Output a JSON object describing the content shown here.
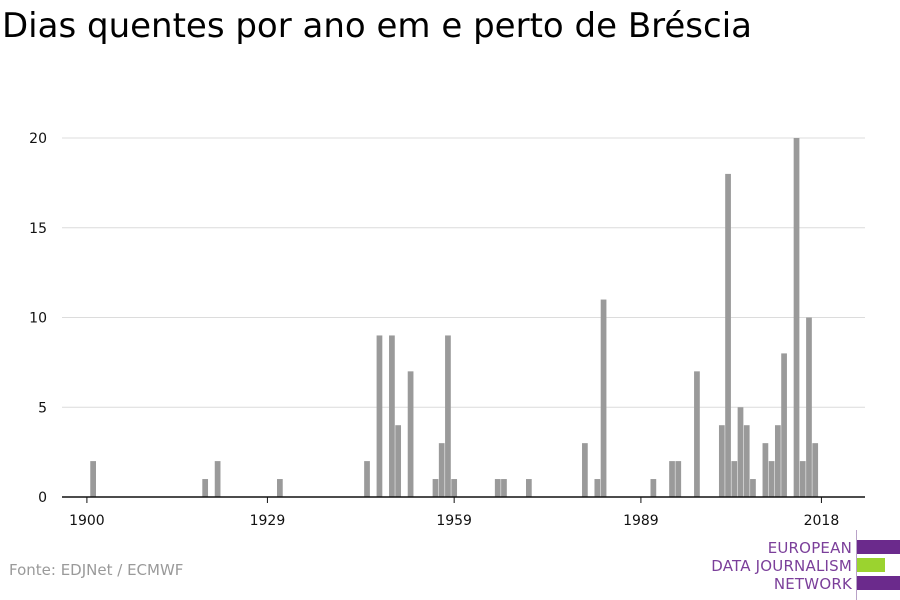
{
  "title": "Dias quentes por ano em e perto de Bréscia",
  "source": "Fonte: EDJNet / ECMWF",
  "logo": {
    "lines": [
      "EUROPEAN",
      "DATA JOURNALISM",
      "NETWORK"
    ],
    "colors": {
      "purple": "#6b2a8c",
      "green": "#9bd32f"
    }
  },
  "chart_data": {
    "type": "bar",
    "title": "Dias quentes por ano em e perto de Bréscia",
    "xlabel": "",
    "ylabel": "",
    "xlim": [
      1896,
      2025
    ],
    "ylim": [
      0,
      20
    ],
    "yticks": [
      0,
      5,
      10,
      15,
      20
    ],
    "xticks": [
      1900,
      1929,
      1959,
      1989,
      2018
    ],
    "bar_color": "#9a9a9a",
    "grid": true,
    "x": [
      1901,
      1919,
      1921,
      1931,
      1945,
      1947,
      1949,
      1950,
      1952,
      1956,
      1957,
      1958,
      1959,
      1966,
      1967,
      1971,
      1980,
      1982,
      1983,
      1991,
      1994,
      1995,
      1998,
      2002,
      2003,
      2004,
      2005,
      2006,
      2007,
      2009,
      2010,
      2011,
      2012,
      2014,
      2015,
      2016,
      2017
    ],
    "values": [
      2,
      1,
      2,
      1,
      2,
      9,
      9,
      4,
      7,
      1,
      3,
      9,
      1,
      1,
      1,
      1,
      3,
      1,
      11,
      1,
      2,
      2,
      7,
      4,
      18,
      2,
      5,
      4,
      1,
      3,
      2,
      4,
      8,
      20,
      2,
      10,
      3
    ]
  }
}
